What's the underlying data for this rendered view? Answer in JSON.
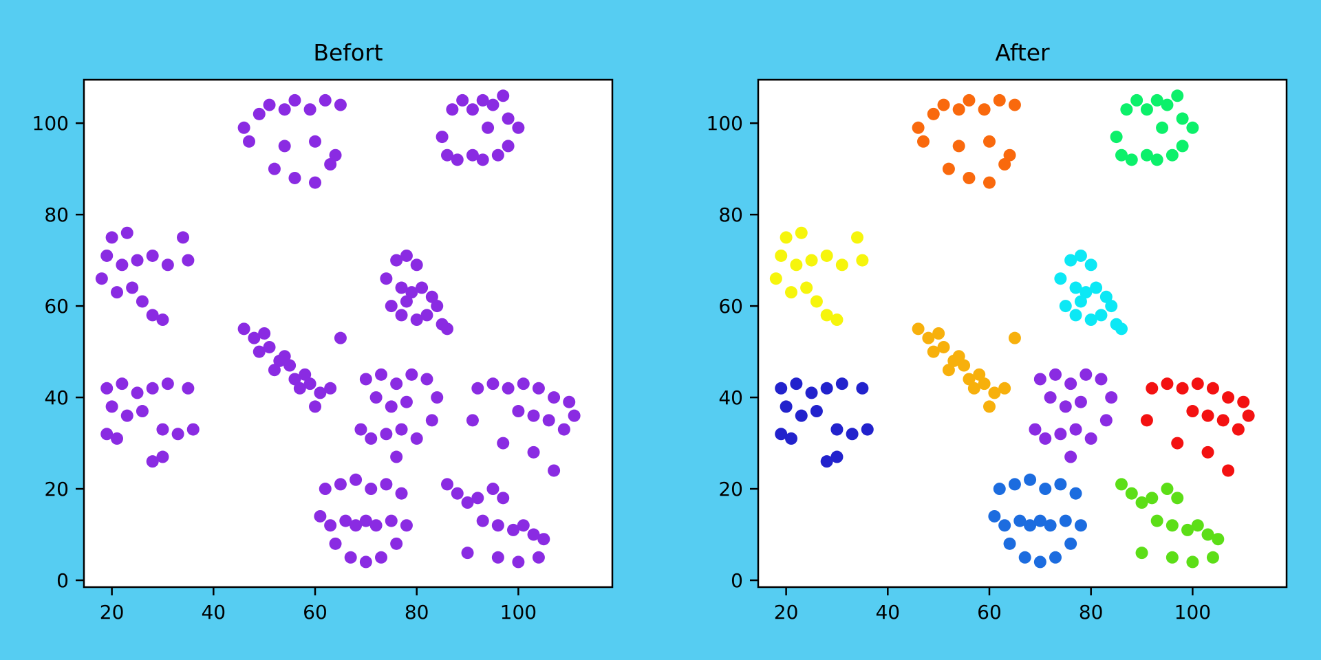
{
  "figure": {
    "background_color": "#56CDF2",
    "axes_background": "#ffffff",
    "axis_color": "#000000",
    "text_color": "#000000"
  },
  "chart_data": {
    "type": "scatter",
    "layout_hint": "two side-by-side subplots, identical point positions; left plot single color, right plot colored by cluster; no grid; no legend",
    "xlim": [
      14.5,
      118.5
    ],
    "ylim": [
      -1.5,
      109.5
    ],
    "xticks": [
      20,
      40,
      60,
      80,
      100
    ],
    "yticks": [
      0,
      20,
      40,
      60,
      80,
      100
    ],
    "grid": false,
    "plots": [
      {
        "title": "Befort",
        "color_mode": "single",
        "point_color": "#8A2BE2"
      },
      {
        "title": "After",
        "color_mode": "cluster"
      }
    ],
    "clusters": [
      {
        "label": "cluster-orange-top-left",
        "color": "#F9690D",
        "points": [
          [
            49,
            102
          ],
          [
            51,
            104
          ],
          [
            54,
            103
          ],
          [
            56,
            105
          ],
          [
            59,
            103
          ],
          [
            62,
            105
          ],
          [
            65,
            104
          ],
          [
            46,
            99
          ],
          [
            47,
            96
          ],
          [
            54,
            95
          ],
          [
            60,
            96
          ],
          [
            64,
            93
          ],
          [
            52,
            90
          ],
          [
            56,
            88
          ],
          [
            60,
            87
          ],
          [
            63,
            91
          ]
        ]
      },
      {
        "label": "cluster-springgreen-top-right",
        "color": "#0CF06A",
        "points": [
          [
            87,
            103
          ],
          [
            89,
            105
          ],
          [
            91,
            103
          ],
          [
            93,
            105
          ],
          [
            95,
            104
          ],
          [
            97,
            106
          ],
          [
            98,
            101
          ],
          [
            100,
            99
          ],
          [
            85,
            97
          ],
          [
            86,
            93
          ],
          [
            88,
            92
          ],
          [
            91,
            93
          ],
          [
            93,
            92
          ],
          [
            96,
            93
          ],
          [
            98,
            95
          ],
          [
            94,
            99
          ]
        ]
      },
      {
        "label": "cluster-yellow-left",
        "color": "#F6F50C",
        "points": [
          [
            20,
            75
          ],
          [
            23,
            76
          ],
          [
            19,
            71
          ],
          [
            22,
            69
          ],
          [
            25,
            70
          ],
          [
            28,
            71
          ],
          [
            31,
            69
          ],
          [
            34,
            75
          ],
          [
            35,
            70
          ],
          [
            18,
            66
          ],
          [
            21,
            63
          ],
          [
            24,
            64
          ],
          [
            28,
            58
          ],
          [
            30,
            57
          ],
          [
            26,
            61
          ]
        ]
      },
      {
        "label": "cluster-cyan-middle-right",
        "color": "#0CE8F5",
        "points": [
          [
            76,
            70
          ],
          [
            78,
            71
          ],
          [
            80,
            69
          ],
          [
            74,
            66
          ],
          [
            77,
            64
          ],
          [
            79,
            63
          ],
          [
            81,
            64
          ],
          [
            83,
            62
          ],
          [
            75,
            60
          ],
          [
            77,
            58
          ],
          [
            80,
            57
          ],
          [
            82,
            58
          ],
          [
            84,
            60
          ],
          [
            85,
            56
          ],
          [
            86,
            55
          ],
          [
            78,
            61
          ]
        ]
      },
      {
        "label": "cluster-darkblue-left-lower",
        "color": "#2222CC",
        "points": [
          [
            19,
            42
          ],
          [
            22,
            43
          ],
          [
            25,
            41
          ],
          [
            28,
            42
          ],
          [
            31,
            43
          ],
          [
            35,
            42
          ],
          [
            20,
            38
          ],
          [
            23,
            36
          ],
          [
            26,
            37
          ],
          [
            19,
            32
          ],
          [
            21,
            31
          ],
          [
            30,
            33
          ],
          [
            33,
            32
          ],
          [
            36,
            33
          ],
          [
            28,
            26
          ],
          [
            30,
            27
          ]
        ]
      },
      {
        "label": "cluster-amber-center-diagonal",
        "color": "#F7B00C",
        "points": [
          [
            46,
            55
          ],
          [
            48,
            53
          ],
          [
            50,
            54
          ],
          [
            49,
            50
          ],
          [
            51,
            51
          ],
          [
            53,
            48
          ],
          [
            54,
            49
          ],
          [
            52,
            46
          ],
          [
            55,
            47
          ],
          [
            56,
            44
          ],
          [
            58,
            45
          ],
          [
            57,
            42
          ],
          [
            59,
            43
          ],
          [
            61,
            41
          ],
          [
            63,
            42
          ],
          [
            60,
            38
          ],
          [
            65,
            53
          ]
        ]
      },
      {
        "label": "cluster-purple-center",
        "color": "#8A2BE2",
        "points": [
          [
            70,
            44
          ],
          [
            73,
            45
          ],
          [
            76,
            43
          ],
          [
            79,
            45
          ],
          [
            82,
            44
          ],
          [
            84,
            40
          ],
          [
            72,
            40
          ],
          [
            75,
            38
          ],
          [
            78,
            39
          ],
          [
            69,
            33
          ],
          [
            71,
            31
          ],
          [
            74,
            32
          ],
          [
            77,
            33
          ],
          [
            80,
            31
          ],
          [
            83,
            35
          ],
          [
            76,
            27
          ]
        ]
      },
      {
        "label": "cluster-red-right",
        "color": "#F31111",
        "points": [
          [
            92,
            42
          ],
          [
            95,
            43
          ],
          [
            98,
            42
          ],
          [
            101,
            43
          ],
          [
            104,
            42
          ],
          [
            107,
            40
          ],
          [
            110,
            39
          ],
          [
            111,
            36
          ],
          [
            109,
            33
          ],
          [
            91,
            35
          ],
          [
            100,
            37
          ],
          [
            103,
            36
          ],
          [
            106,
            35
          ],
          [
            97,
            30
          ],
          [
            103,
            28
          ],
          [
            107,
            24
          ]
        ]
      },
      {
        "label": "cluster-blue-bottom-middle",
        "color": "#1C6CDF",
        "points": [
          [
            62,
            20
          ],
          [
            65,
            21
          ],
          [
            68,
            22
          ],
          [
            71,
            20
          ],
          [
            74,
            21
          ],
          [
            77,
            19
          ],
          [
            61,
            14
          ],
          [
            63,
            12
          ],
          [
            66,
            13
          ],
          [
            68,
            12
          ],
          [
            70,
            13
          ],
          [
            72,
            12
          ],
          [
            75,
            13
          ],
          [
            78,
            12
          ],
          [
            64,
            8
          ],
          [
            67,
            5
          ],
          [
            70,
            4
          ],
          [
            73,
            5
          ],
          [
            76,
            8
          ]
        ]
      },
      {
        "label": "cluster-green-bottom-right",
        "color": "#5CDE17",
        "points": [
          [
            86,
            21
          ],
          [
            88,
            19
          ],
          [
            90,
            17
          ],
          [
            92,
            18
          ],
          [
            95,
            20
          ],
          [
            97,
            18
          ],
          [
            93,
            13
          ],
          [
            96,
            12
          ],
          [
            99,
            11
          ],
          [
            101,
            12
          ],
          [
            103,
            10
          ],
          [
            105,
            9
          ],
          [
            90,
            6
          ],
          [
            96,
            5
          ],
          [
            100,
            4
          ],
          [
            104,
            5
          ]
        ]
      }
    ]
  }
}
